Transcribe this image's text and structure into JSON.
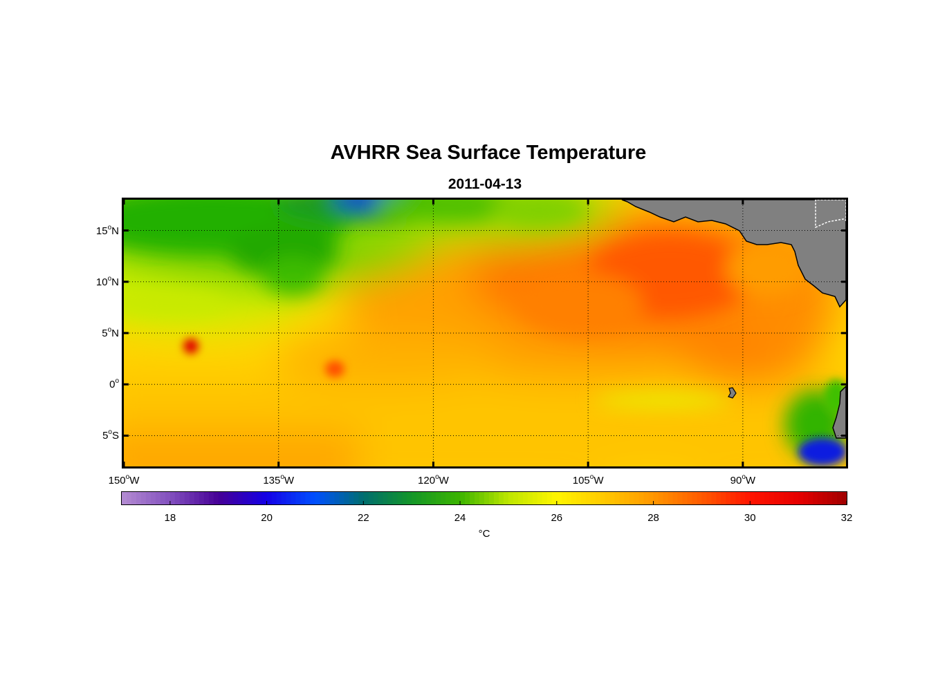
{
  "chart_data": {
    "type": "heatmap",
    "title": "AVHRR Sea Surface Temperature",
    "subtitle": "2011-04-13",
    "lat_range": [
      -8,
      18
    ],
    "lon_range": [
      -150,
      -80
    ],
    "lat_ticks": [
      {
        "value": 15,
        "num": "15",
        "deg": "o",
        "hem": "N"
      },
      {
        "value": 10,
        "num": "10",
        "deg": "o",
        "hem": "N"
      },
      {
        "value": 5,
        "num": "5",
        "deg": "o",
        "hem": "N"
      },
      {
        "value": 0,
        "num": "0",
        "deg": "o",
        "hem": ""
      },
      {
        "value": -5,
        "num": "5",
        "deg": "o",
        "hem": "S"
      }
    ],
    "lon_ticks": [
      {
        "value": -150,
        "num": "150",
        "deg": "o",
        "hem": "W"
      },
      {
        "value": -135,
        "num": "135",
        "deg": "o",
        "hem": "W"
      },
      {
        "value": -120,
        "num": "120",
        "deg": "o",
        "hem": "W"
      },
      {
        "value": -105,
        "num": "105",
        "deg": "o",
        "hem": "W"
      },
      {
        "value": -90,
        "num": "90",
        "deg": "o",
        "hem": "W"
      }
    ],
    "colorbar": {
      "range": [
        17,
        32
      ],
      "ticks": [
        "18",
        "20",
        "22",
        "24",
        "26",
        "28",
        "30",
        "32"
      ],
      "unit": "°C"
    },
    "land_color": "#808080"
  }
}
